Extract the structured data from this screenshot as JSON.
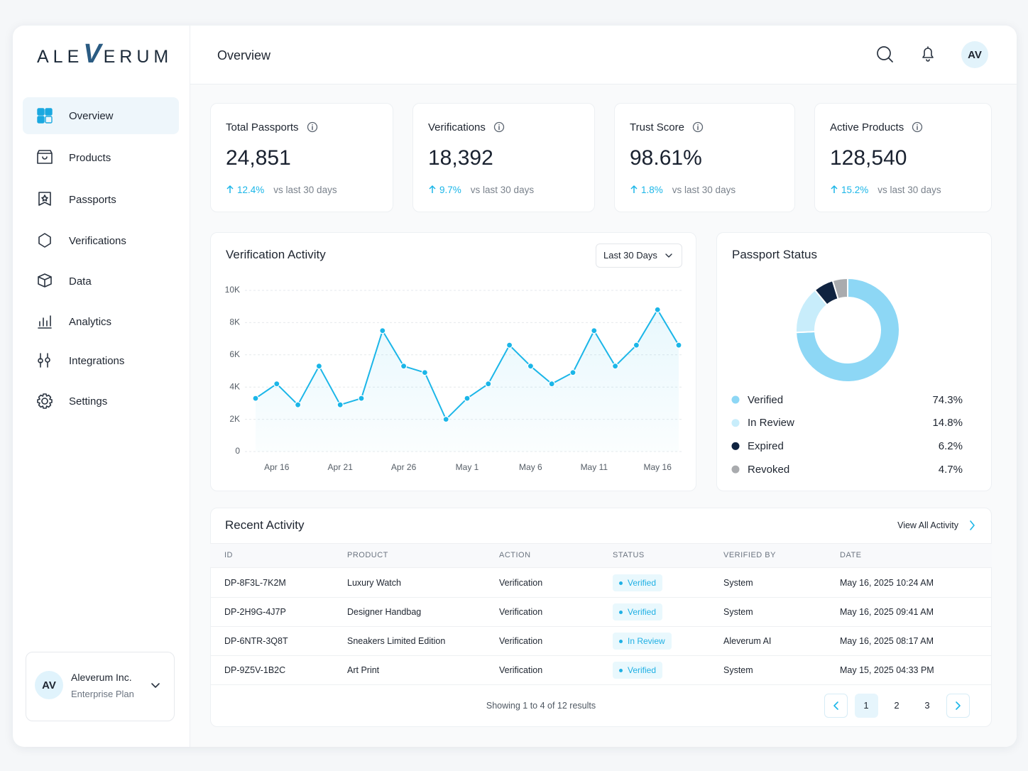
{
  "brand": {
    "logo": [
      "ALE",
      "V",
      "ERUM"
    ]
  },
  "header": {
    "title": "Overview",
    "avatar": "AV"
  },
  "sidebar": {
    "nav": [
      "Overview",
      "Products",
      "Passports",
      "Verifications",
      "Data",
      "Analytics",
      "Integrations",
      "Settings"
    ],
    "account": {
      "avatar": "AV",
      "name": "Aleverum Inc.",
      "plan": "Enterprise Plan"
    }
  },
  "kpis": [
    {
      "label": "Total Passports",
      "value": "24,851",
      "change": "12.4%",
      "note": "vs last 30 days"
    },
    {
      "label": "Verifications",
      "value": "18,392",
      "change": "9.7%",
      "note": "vs last 30 days"
    },
    {
      "label": "Trust Score",
      "value": "98.61%",
      "change": "1.8%",
      "note": "vs last 30 days"
    },
    {
      "label": "Active Products",
      "value": "128,540",
      "change": "15.2%",
      "note": "vs last 30 days"
    }
  ],
  "chart_data": [
    {
      "type": "line",
      "title": "Verification Activity",
      "range": "Last 30 Days",
      "categories": [
        null,
        "Apr 16",
        null,
        null,
        "Apr 21",
        null,
        null,
        "Apr 26",
        null,
        null,
        "May 1",
        null,
        null,
        "May 6",
        null,
        null,
        "May 11",
        null,
        null,
        "May 16",
        null
      ],
      "values": [
        3300,
        4200,
        2900,
        5300,
        2900,
        3300,
        7500,
        5300,
        4900,
        2000,
        3300,
        4200,
        6600,
        5300,
        4200,
        4900,
        7500,
        5300,
        6600,
        8800,
        6600
      ],
      "color": "#1bb6e8",
      "ylim": [
        0,
        10000
      ],
      "yticks": [
        0,
        {
          "value": 2000,
          "label": "2K"
        },
        {
          "value": 4000,
          "label": "4K"
        },
        {
          "value": 6000,
          "label": "6K"
        },
        {
          "value": 8000,
          "label": "8K"
        },
        {
          "value": 10000,
          "label": "10K"
        }
      ],
      "grid": true
    },
    {
      "type": "pie",
      "title": "Passport Status",
      "categories": [
        "Verified",
        "In Review",
        "Expired",
        "Revoked"
      ],
      "values": [
        74.3,
        14.8,
        6.2,
        4.7
      ],
      "value_labels": [
        "74.3%",
        "14.8%",
        "6.2%",
        "4.7%"
      ],
      "colors": [
        "#8dd7f5",
        "#c8edfb",
        "#0f2340",
        "#a9abae"
      ]
    }
  ],
  "recent_activity": {
    "title": "Recent Activity",
    "link": "View All Activity",
    "columns": [
      "ID",
      "PRODUCT",
      "ACTION",
      "STATUS",
      "VERIFIED BY",
      "DATE"
    ],
    "rows": [
      [
        "DP-8F3L-7K2M",
        "Luxury Watch",
        "Verification",
        "Verified",
        "System",
        "May 16, 2025 10:24 AM"
      ],
      [
        "DP-2H9G-4J7P",
        "Designer Handbag",
        "Verification",
        "Verified",
        "System",
        "May 16, 2025 09:41 AM"
      ],
      [
        "DP-6NTR-3Q8T",
        "Sneakers Limited Edition",
        "Verification",
        "In Review",
        "Aleverum AI",
        "May 16, 2025 08:17 AM"
      ],
      [
        "DP-9Z5V-1B2C",
        "Art Print",
        "Verification",
        "Verified",
        "System",
        "May 15, 2025 04:33 PM"
      ]
    ],
    "footer": "Showing 1 to 4 of 12 results",
    "pages": [
      "1",
      "2",
      "3"
    ]
  }
}
